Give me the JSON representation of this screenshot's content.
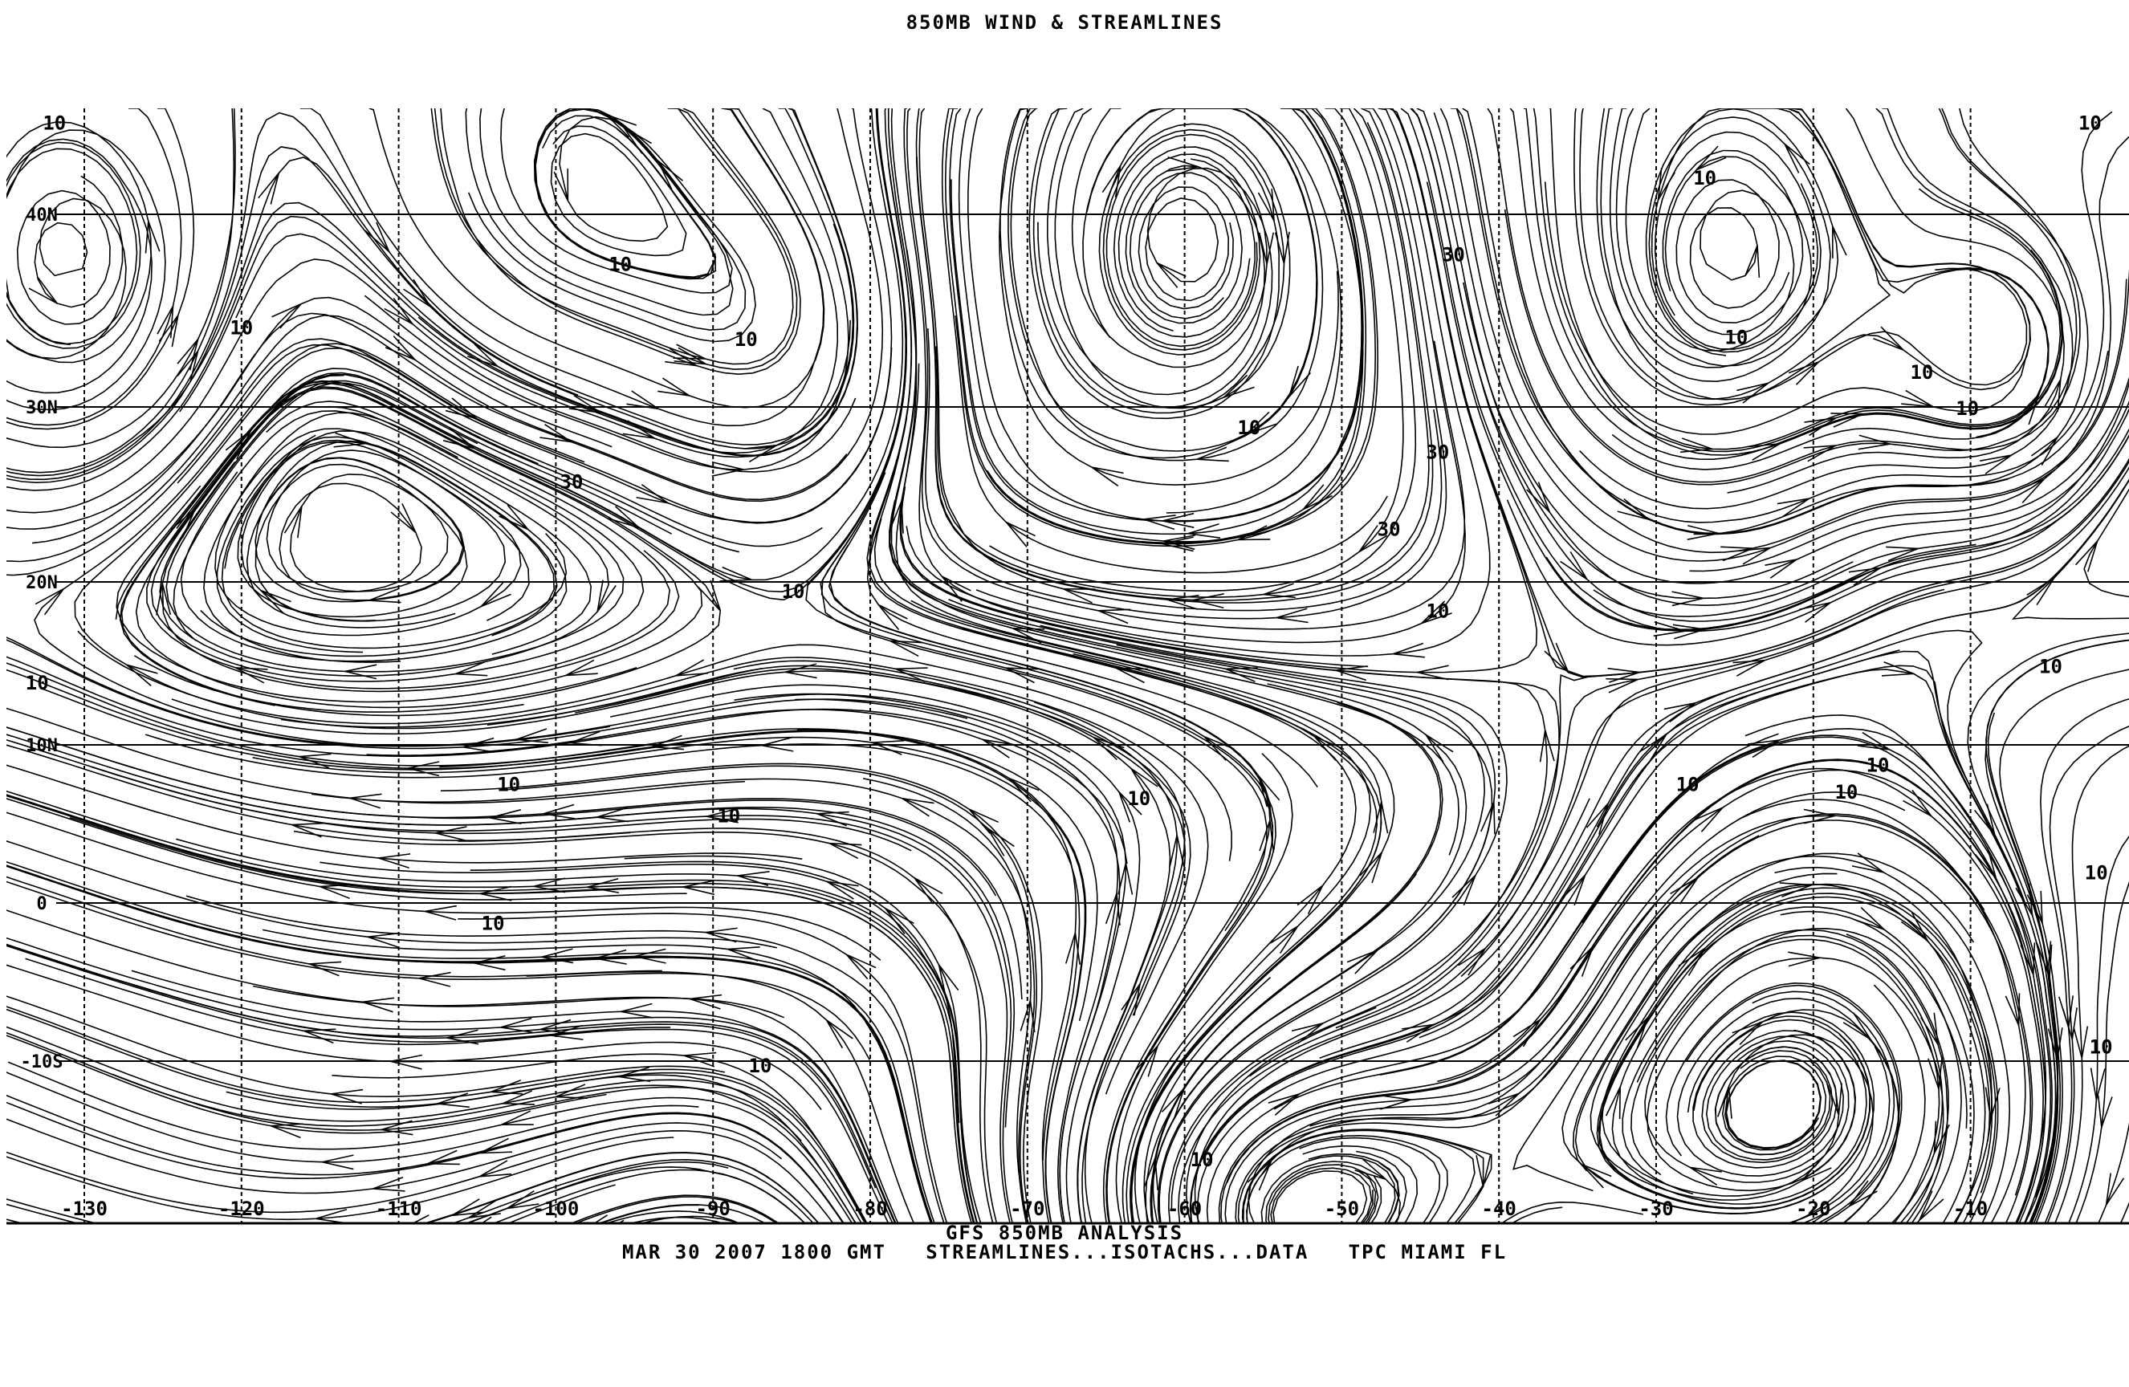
{
  "header": {
    "title": "850MB WIND & STREAMLINES"
  },
  "footer": {
    "line1": "GFS 850MB ANALYSIS",
    "line2": "MAR 30 2007 1800 GMT   STREAMLINES...ISOTACHS...DATA   TPC MIAMI FL"
  },
  "map": {
    "lon_range": [
      -135,
      -0.3
    ],
    "lat_range": [
      -27,
      45
    ],
    "lon_ticks": [
      {
        "value": -130,
        "label": "-130"
      },
      {
        "value": -120,
        "label": "-120"
      },
      {
        "value": -110,
        "label": "-110"
      },
      {
        "value": -100,
        "label": "-100"
      },
      {
        "value": -90,
        "label": "-90"
      },
      {
        "value": -80,
        "label": "-80"
      },
      {
        "value": -70,
        "label": "-70"
      },
      {
        "value": -60,
        "label": "-60"
      },
      {
        "value": -50,
        "label": "-50"
      },
      {
        "value": -40,
        "label": "-40"
      },
      {
        "value": -30,
        "label": "-30"
      },
      {
        "value": -20,
        "label": "-20"
      },
      {
        "value": -10,
        "label": "-10"
      }
    ],
    "lat_ticks": [
      {
        "value": 40,
        "label": "40N"
      },
      {
        "value": 30,
        "label": "30N"
      },
      {
        "value": 20,
        "label": "20N"
      },
      {
        "value": 10,
        "label": "10N"
      },
      {
        "value": 0,
        "label": "0"
      },
      {
        "value": -10,
        "label": "-10S"
      }
    ],
    "line_color": "#000000",
    "isotach_color": "#999999",
    "isotach_labels": [
      {
        "lon": -131.9,
        "lat": 44.3,
        "text": "10"
      },
      {
        "lon": -120.0,
        "lat": 34.1,
        "text": "10"
      },
      {
        "lon": -95.9,
        "lat": 37.4,
        "text": "10"
      },
      {
        "lon": -87.9,
        "lat": 33.5,
        "text": "10"
      },
      {
        "lon": -99.0,
        "lat": 25.7,
        "text": "30"
      },
      {
        "lon": -84.9,
        "lat": 19.4,
        "text": "10"
      },
      {
        "lon": -55.9,
        "lat": 28.8,
        "text": "10"
      },
      {
        "lon": -42.9,
        "lat": 37.9,
        "text": "30"
      },
      {
        "lon": -43.9,
        "lat": 27.4,
        "text": "30"
      },
      {
        "lon": -47.0,
        "lat": 23.0,
        "text": "30"
      },
      {
        "lon": -43.9,
        "lat": 18.2,
        "text": "10"
      },
      {
        "lon": -26.9,
        "lat": 41.7,
        "text": "10"
      },
      {
        "lon": -24.9,
        "lat": 33.6,
        "text": "10"
      },
      {
        "lon": -13.1,
        "lat": 31.8,
        "text": "10"
      },
      {
        "lon": -10.2,
        "lat": 29.9,
        "text": "10"
      },
      {
        "lon": -4.9,
        "lat": 14.8,
        "text": "10"
      },
      {
        "lon": -28.0,
        "lat": 7.5,
        "text": "10"
      },
      {
        "lon": -17.9,
        "lat": 7.0,
        "text": "10"
      },
      {
        "lon": -15.9,
        "lat": 8.7,
        "text": "10"
      },
      {
        "lon": -2.0,
        "lat": 1.9,
        "text": "10"
      },
      {
        "lon": -1.7,
        "lat": -9.1,
        "text": "10"
      },
      {
        "lon": -58.9,
        "lat": -16.2,
        "text": "10"
      },
      {
        "lon": -62.9,
        "lat": 6.6,
        "text": "10"
      },
      {
        "lon": -103.0,
        "lat": 7.5,
        "text": "10"
      },
      {
        "lon": -89.0,
        "lat": 5.5,
        "text": "10"
      },
      {
        "lon": -104.0,
        "lat": -1.3,
        "text": "10"
      },
      {
        "lon": -87.0,
        "lat": -10.3,
        "text": "10"
      },
      {
        "lon": -133.0,
        "lat": 13.8,
        "text": "10"
      },
      {
        "lon": -2.4,
        "lat": 44.3,
        "text": "10"
      }
    ]
  }
}
